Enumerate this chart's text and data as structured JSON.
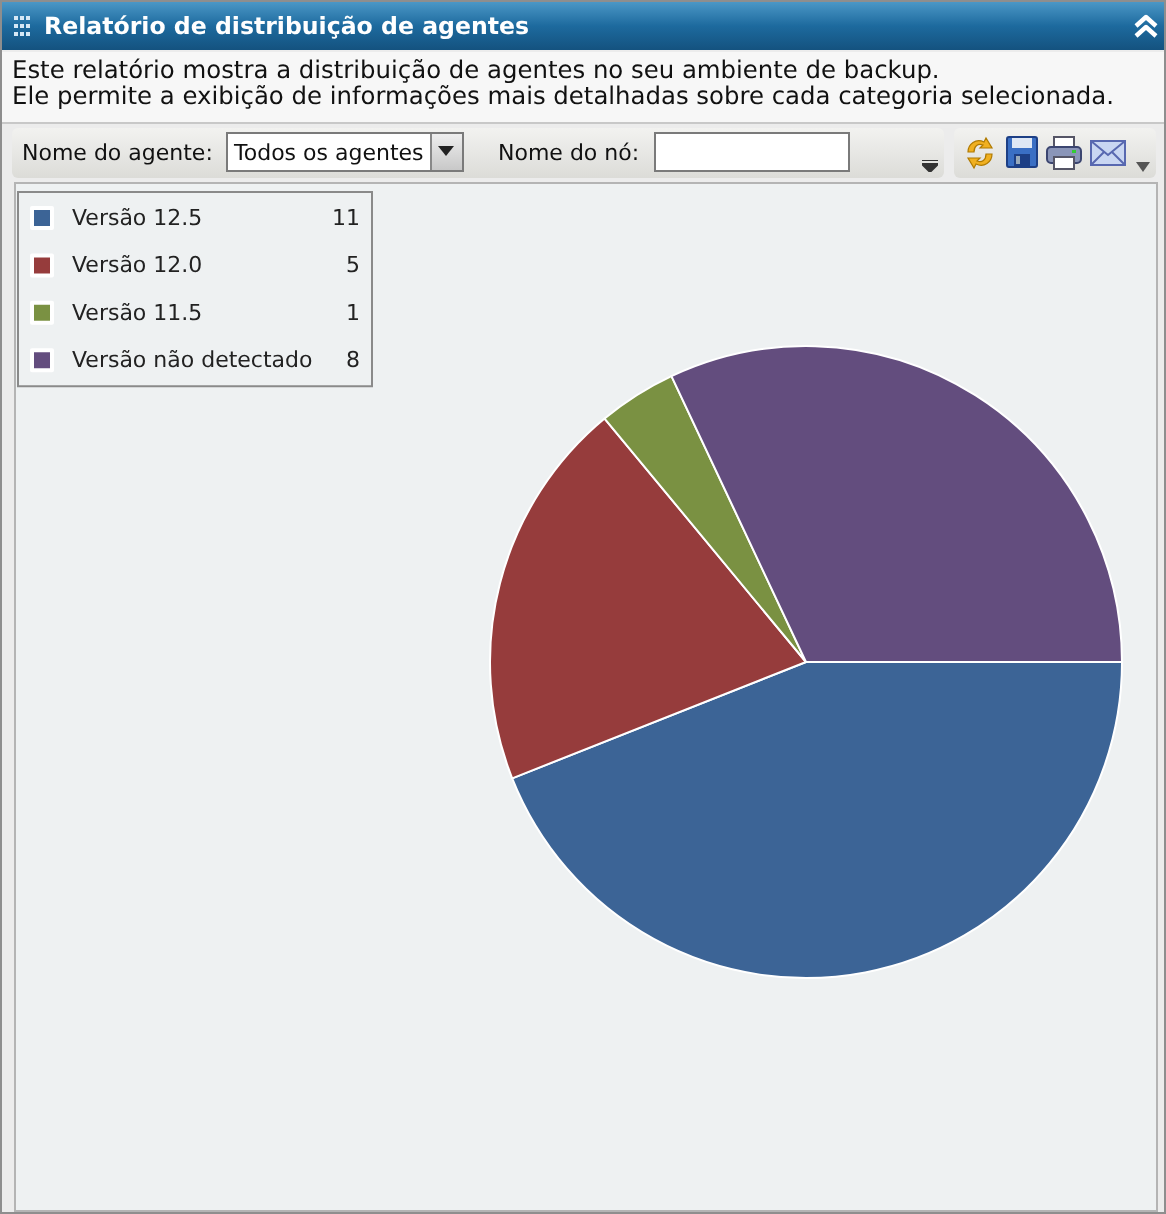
{
  "chart_data": {
    "type": "pie",
    "title": "Relatório de distribuição de agentes",
    "subtitle": "Este relatório mostra a distribuição de agentes no seu ambiente de backup.\nEle permite a exibição de informações mais detalhadas sobre cada categoria selecionada.",
    "annotations": [
      "Nome do agente:",
      "Todos os agentes",
      "Nome do nó:"
    ],
    "categories": [
      "Versão 12.5",
      "Versão 12.0",
      "Versão 11.5",
      "Versão não detectado"
    ],
    "values": [
      11,
      5,
      1,
      8
    ],
    "colors": [
      "#3c6496",
      "#963c3c",
      "#7a9142",
      "#634d7e"
    ],
    "legend": "top left",
    "data_labels": true
  }
}
